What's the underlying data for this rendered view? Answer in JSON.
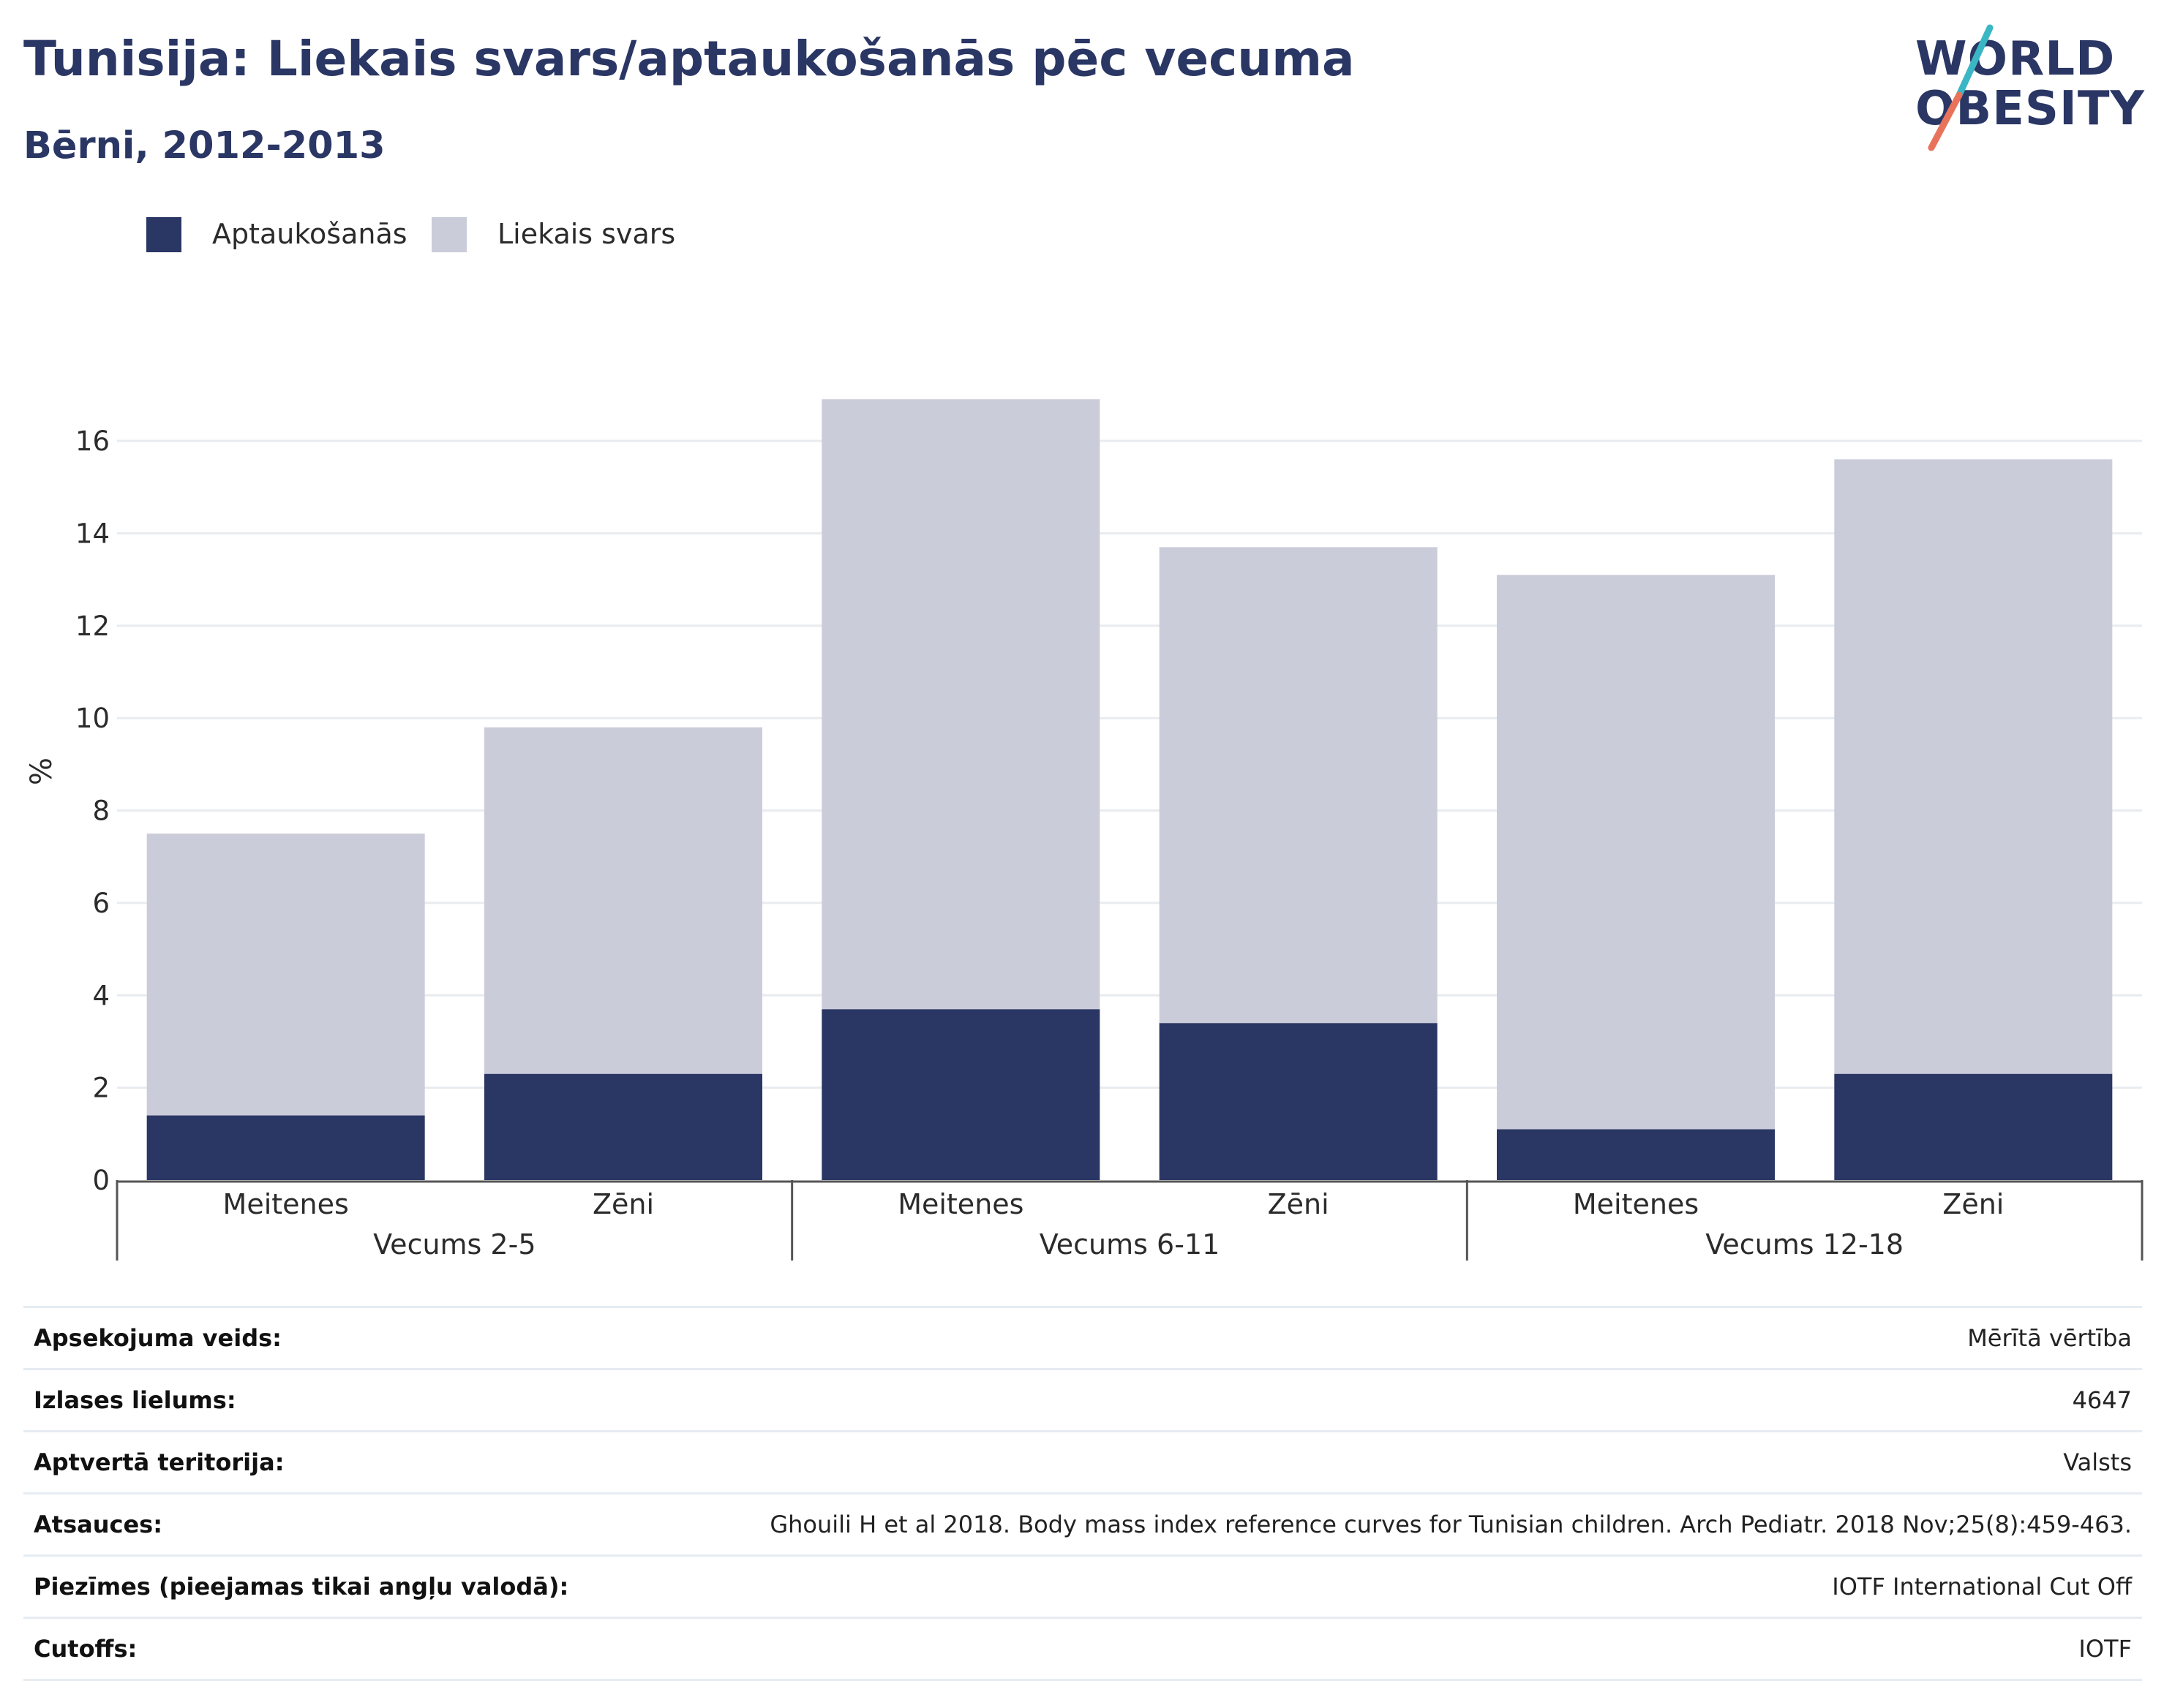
{
  "header": {
    "title": "Tunisija: Liekais svars/aptaukošanās pēc vecuma",
    "subtitle": "Bērni, 2012-2013"
  },
  "logo": {
    "line1": "WORLD",
    "line2": "OBESITY",
    "colors": {
      "text": "#2a3664",
      "slash_top": "#3bb6c4",
      "slash_bottom": "#e8735a"
    }
  },
  "legend": [
    {
      "label": "Aptaukošanās",
      "color": "#2a3664"
    },
    {
      "label": "Liekais svars",
      "color": "#cbccd9"
    }
  ],
  "chart_data": {
    "type": "bar",
    "stacked": true,
    "ylabel": "%",
    "ylim": [
      0,
      17
    ],
    "yticks": [
      0,
      2,
      4,
      6,
      8,
      10,
      12,
      14,
      16
    ],
    "grid": true,
    "legend_position": "top-left",
    "categories": [
      "Meitenes",
      "Zēni",
      "Meitenes",
      "Zēni",
      "Meitenes",
      "Zēni"
    ],
    "groups": [
      {
        "label": "Vecums 2-5",
        "members": [
          0,
          1
        ]
      },
      {
        "label": "Vecums 6-11",
        "members": [
          2,
          3
        ]
      },
      {
        "label": "Vecums 12-18",
        "members": [
          4,
          5
        ]
      }
    ],
    "series": [
      {
        "name": "Aptaukošanās",
        "color": "#2a3664",
        "values": [
          1.4,
          2.3,
          3.7,
          3.4,
          1.1,
          2.3
        ]
      },
      {
        "name": "Liekais svars",
        "color": "#cbccd9",
        "values": [
          6.1,
          7.5,
          13.2,
          10.3,
          12.0,
          13.3
        ]
      }
    ]
  },
  "info_table": [
    {
      "key": "Apsekojuma veids:",
      "value": "Mērītā vērtība"
    },
    {
      "key": "Izlases lielums:",
      "value": "4647"
    },
    {
      "key": "Aptvertā teritorija:",
      "value": "Valsts"
    },
    {
      "key": "Atsauces:",
      "value": "Ghouili H et al 2018. Body mass index reference curves for Tunisian children. Arch Pediatr. 2018 Nov;25(8):459-463."
    },
    {
      "key": "Piezīmes (pieejamas tikai angļu valodā):",
      "value": "IOTF International Cut Off"
    },
    {
      "key": "Cutoffs:",
      "value": "IOTF"
    }
  ]
}
